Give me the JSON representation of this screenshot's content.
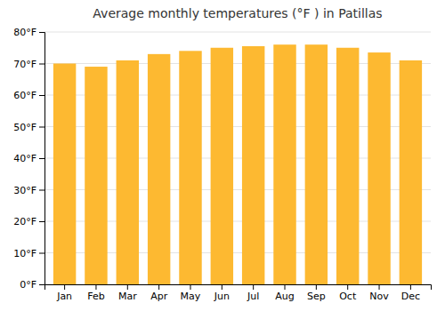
{
  "chart_data": {
    "type": "bar",
    "title": "Average monthly temperatures (°F ) in Patillas",
    "categories": [
      "Jan",
      "Feb",
      "Mar",
      "Apr",
      "May",
      "Jun",
      "Jul",
      "Aug",
      "Sep",
      "Oct",
      "Nov",
      "Dec"
    ],
    "values": [
      70,
      69,
      71,
      73,
      74,
      75,
      75.5,
      76,
      76,
      75,
      73.5,
      71
    ],
    "color": "#FDB931",
    "ylim": [
      0,
      80
    ],
    "yticks": [
      {
        "value": 0,
        "label": "0°F"
      },
      {
        "value": 10,
        "label": "10°F"
      },
      {
        "value": 20,
        "label": "20°F"
      },
      {
        "value": 30,
        "label": "30°F"
      },
      {
        "value": 40,
        "label": "40°F"
      },
      {
        "value": 50,
        "label": "50°F"
      },
      {
        "value": 60,
        "label": "60°F"
      },
      {
        "value": 70,
        "label": "70°F"
      },
      {
        "value": 80,
        "label": "80°F"
      }
    ],
    "grid": true
  }
}
